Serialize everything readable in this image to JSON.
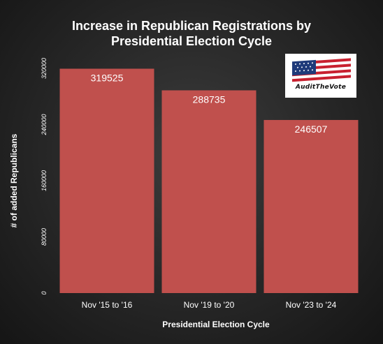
{
  "chart_data": {
    "type": "bar",
    "title_line1": "Increase in Republican Registrations by",
    "title_line2": "Presidential Election Cycle",
    "xlabel": "Presidential Election Cycle",
    "ylabel": "# of added Republicans",
    "categories": [
      "Nov '15 to '16",
      "Nov '19 to '20",
      "Nov '23 to '24"
    ],
    "values": [
      319525,
      288735,
      246507
    ],
    "data_labels": [
      "319525",
      "288735",
      "246507"
    ],
    "ylim": [
      0,
      320000
    ],
    "yticks": [
      0,
      80000,
      160000,
      240000,
      320000
    ],
    "ytick_labels": [
      "0",
      "80000",
      "160000",
      "240000",
      "320000"
    ],
    "grid": false,
    "bar_color": "#c0504d",
    "text_color": "#ffffff"
  },
  "logo": {
    "text": "AuditTheVote",
    "icon": "us-flag-icon"
  }
}
